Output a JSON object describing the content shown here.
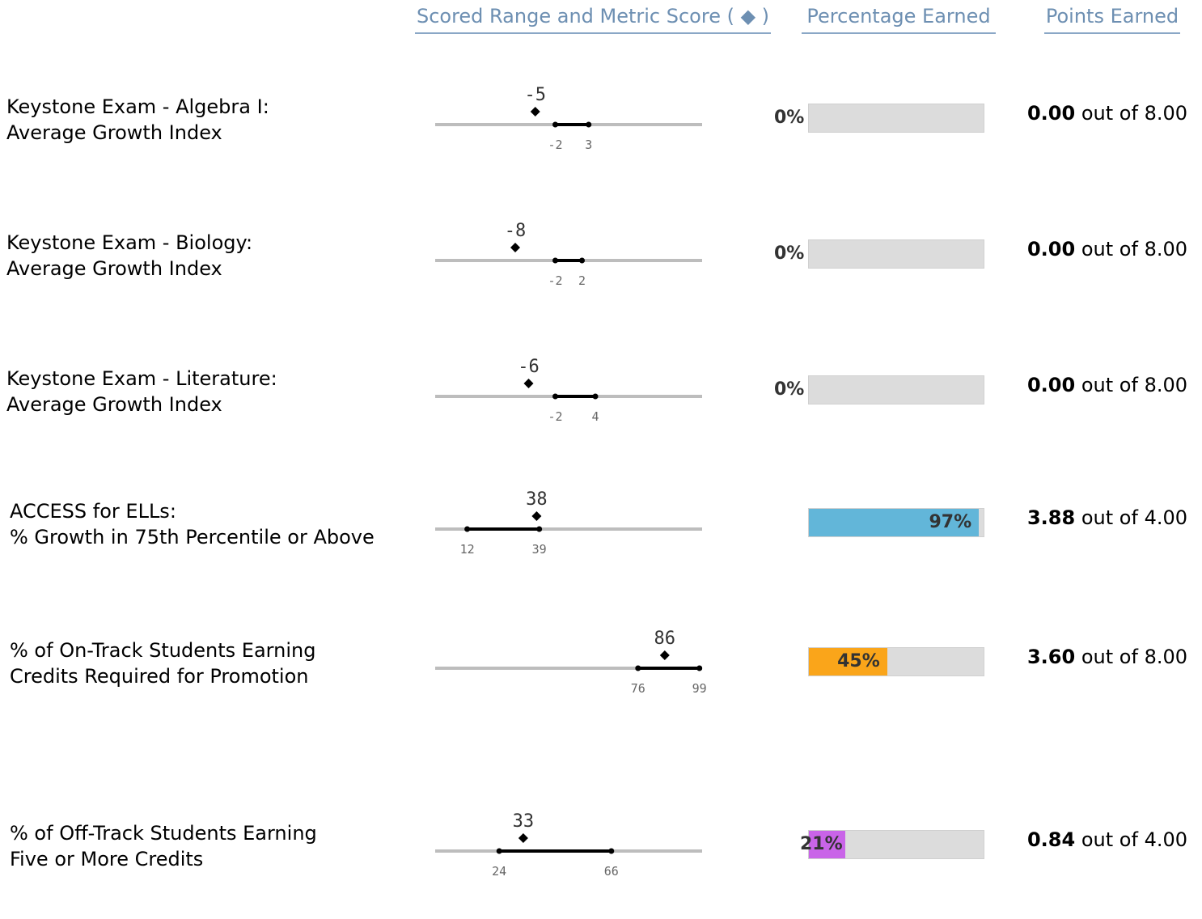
{
  "header": {
    "range_label": "Scored Range and Metric Score ( ◆ )",
    "percentage_label": "Percentage Earned",
    "points_label": "Points Earned"
  },
  "colors": {
    "header_text": "#6d8fb2",
    "bar_bg": "#dcdcdc",
    "blue": "#62b6d9",
    "orange": "#faa51a",
    "purple": "#c964e8"
  },
  "chart_data": {
    "type": "table",
    "axis_range": [
      0,
      100
    ],
    "rows": [
      {
        "label_line1": "Keystone Exam - Algebra I:",
        "label_line2": "Average Growth Index",
        "score": -5,
        "score_label": "-5",
        "range_low": -2,
        "range_high": 3,
        "range_low_label": "-2",
        "range_high_label": "3",
        "axis_min": -20,
        "axis_max": 20,
        "percentage": 0,
        "percentage_label": "0%",
        "fill_color": "#62b6d9",
        "points_earned": "0.00",
        "points_text": "out of",
        "points_possible": "8.00"
      },
      {
        "label_line1": "Keystone Exam - Biology:",
        "label_line2": "Average Growth Index",
        "score": -8,
        "score_label": "-8",
        "range_low": -2,
        "range_high": 2,
        "range_low_label": "-2",
        "range_high_label": "2",
        "axis_min": -20,
        "axis_max": 20,
        "percentage": 0,
        "percentage_label": "0%",
        "fill_color": "#62b6d9",
        "points_earned": "0.00",
        "points_text": "out of",
        "points_possible": "8.00"
      },
      {
        "label_line1": "Keystone Exam - Literature:",
        "label_line2": "Average Growth Index",
        "score": -6,
        "score_label": "-6",
        "range_low": -2,
        "range_high": 4,
        "range_low_label": "-2",
        "range_high_label": "4",
        "axis_min": -20,
        "axis_max": 20,
        "percentage": 0,
        "percentage_label": "0%",
        "fill_color": "#62b6d9",
        "points_earned": "0.00",
        "points_text": "out of",
        "points_possible": "8.00"
      },
      {
        "label_line1": "ACCESS for ELLs:",
        "label_line2": "% Growth in 75th Percentile or Above",
        "score": 38,
        "score_label": "38",
        "range_low": 12,
        "range_high": 39,
        "range_low_label": "12",
        "range_high_label": "39",
        "axis_min": 0,
        "axis_max": 100,
        "percentage": 97,
        "percentage_label": "97%",
        "fill_color": "#62b6d9",
        "points_earned": "3.88",
        "points_text": "out of",
        "points_possible": "4.00"
      },
      {
        "label_line1": "% of On-Track Students Earning",
        "label_line2": "Credits Required for Promotion",
        "score": 86,
        "score_label": "86",
        "range_low": 76,
        "range_high": 99,
        "range_low_label": "76",
        "range_high_label": "99",
        "axis_min": 0,
        "axis_max": 100,
        "percentage": 45,
        "percentage_label": "45%",
        "fill_color": "#faa51a",
        "points_earned": "3.60",
        "points_text": "out of",
        "points_possible": "8.00"
      },
      {
        "label_line1": "% of Off-Track Students Earning",
        "label_line2": "Five or More Credits",
        "score": 33,
        "score_label": "33",
        "range_low": 24,
        "range_high": 66,
        "range_low_label": "24",
        "range_high_label": "66",
        "axis_min": 0,
        "axis_max": 100,
        "percentage": 21,
        "percentage_label": "21%",
        "fill_color": "#c964e8",
        "points_earned": "0.84",
        "points_text": "out of",
        "points_possible": "4.00"
      }
    ]
  }
}
